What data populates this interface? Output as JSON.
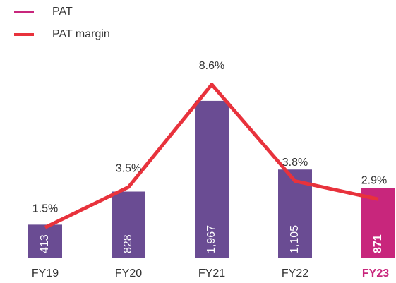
{
  "chart_data": {
    "type": "bar_line",
    "categories": [
      "FY19",
      "FY20",
      "FY21",
      "FY22",
      "FY23"
    ],
    "series": [
      {
        "name": "PAT",
        "type": "bar",
        "color": "#c8267c",
        "colors": [
          "#6a4c93",
          "#6a4c93",
          "#6a4c93",
          "#6a4c93",
          "#c8267c"
        ],
        "values": [
          413,
          828,
          1967,
          1105,
          871
        ],
        "value_labels": [
          "413",
          "828",
          "1,967",
          "1,105",
          "871"
        ]
      },
      {
        "name": "PAT margin",
        "type": "line",
        "axis": "y2",
        "color": "#e8323c",
        "values": [
          1.5,
          3.5,
          8.6,
          3.8,
          2.9
        ],
        "value_labels": [
          "1.5%",
          "3.5%",
          "8.6%",
          "3.8%",
          "2.9%"
        ]
      }
    ],
    "ylim": [
      0,
      2400
    ],
    "y2lim": [
      0,
      9.5
    ],
    "legend": "top-left"
  }
}
